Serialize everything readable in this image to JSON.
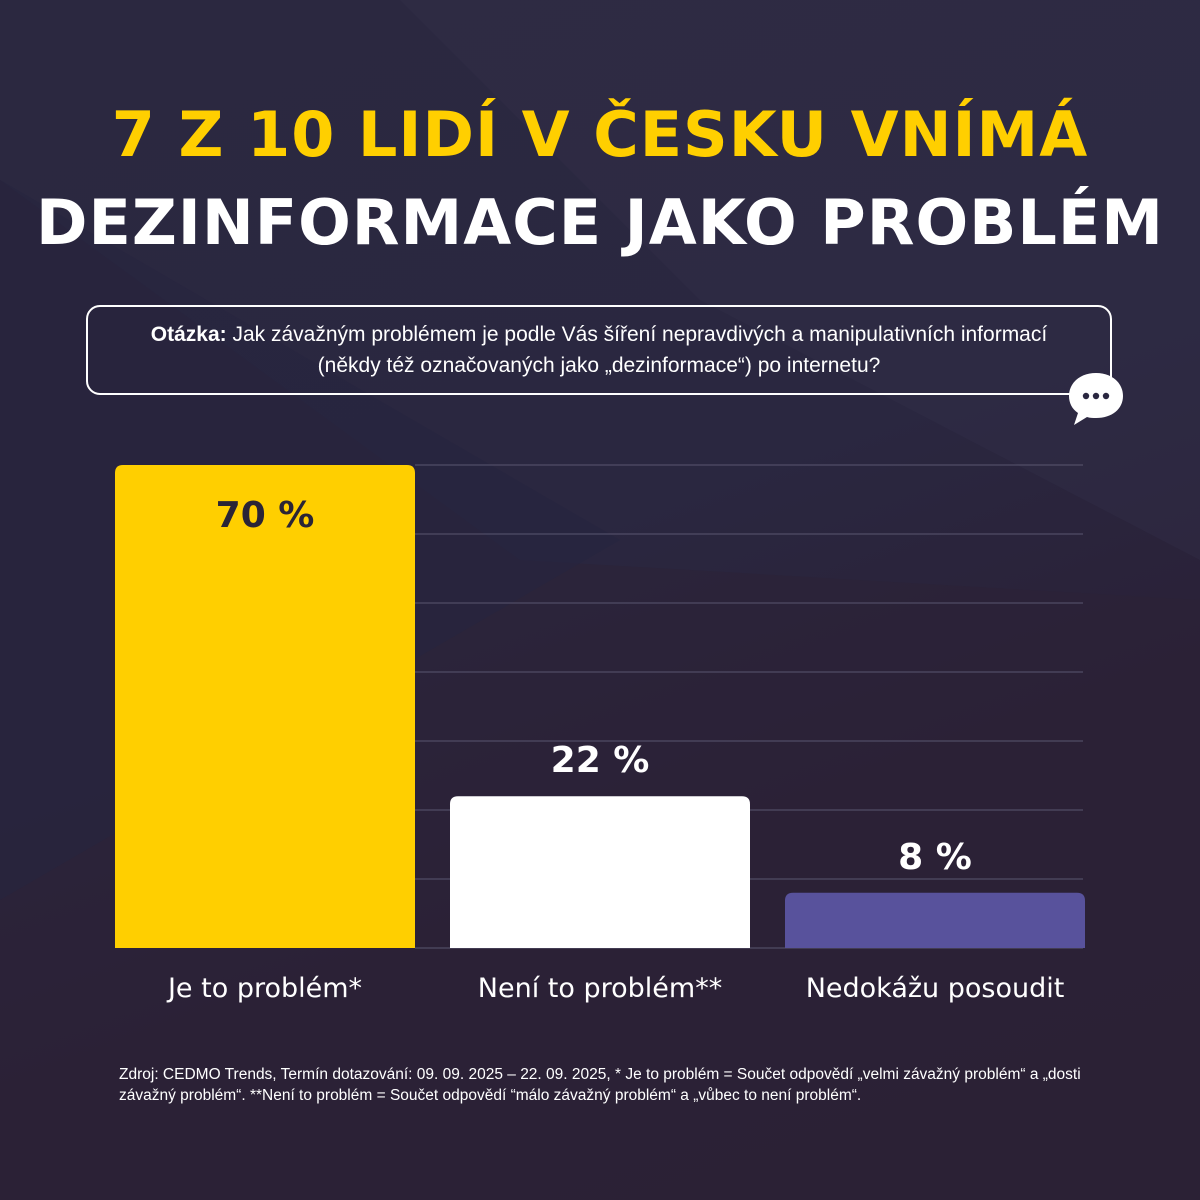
{
  "title_line1": "7 z 10 lidí v Česku vnímá",
  "title_line2": "dezinformace jako problém",
  "question": {
    "label": "Otázka:",
    "text": "Jak závažným problémem je podle Vás šíření nepravdivých a manipulativních informací (někdy též označovaných jako „dezinformace“) po internetu?"
  },
  "bubble_icon": "speech-bubble-icon",
  "colors": {
    "yellow": "#ffcf00",
    "white": "#ffffff",
    "purple": "#58529c",
    "dark_text": "#2a2536"
  },
  "chart_data": {
    "type": "bar",
    "categories": [
      "Je to problém*",
      "Není to problém**",
      "Nedokážu posoudit"
    ],
    "values": [
      70,
      22,
      8
    ],
    "value_labels": [
      "70 %",
      "22 %",
      "8 %"
    ],
    "ylim": [
      0,
      70
    ],
    "grid": true,
    "title": "",
    "xlabel": "",
    "ylabel": ""
  },
  "source": "Zdroj: CEDMO Trends, Termín dotazování: 09. 09. 2025 – 22. 09. 2025,  * Je to problém = Součet odpovědí „velmi závažný problém“ a „dosti závažný problém“. **Není to problém = Součet odpovědí “málo závažný problém“ a „vůbec to není problém“."
}
